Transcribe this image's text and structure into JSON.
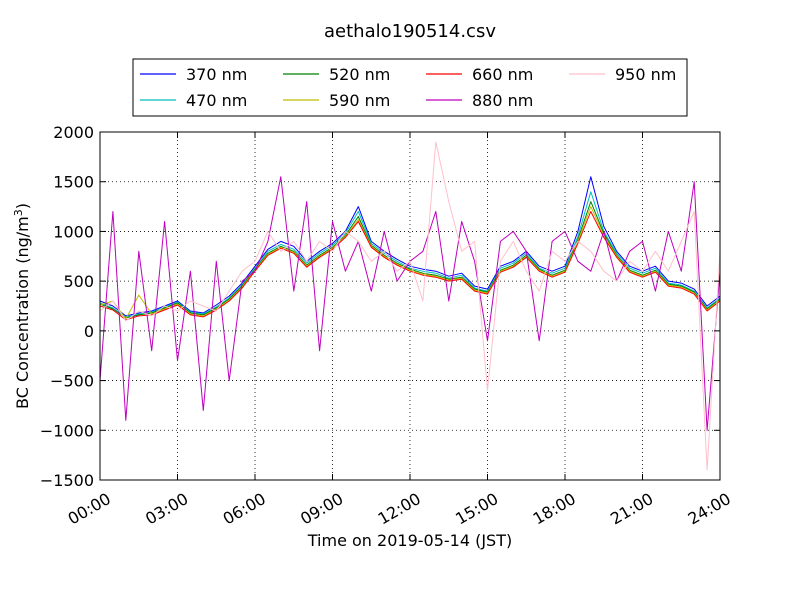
{
  "chart_data": {
    "type": "line",
    "title": "aethalo190514.csv",
    "xlabel": "Time on 2019-05-14 (JST)",
    "ylabel": "BC Concentration (ng/m³)",
    "ylabel_parts": {
      "base": "BC Concentration (ng/m",
      "sup": "3",
      "tail": ")"
    },
    "xlim": [
      0,
      24
    ],
    "ylim": [
      -1500,
      2000
    ],
    "x_unit": "hours",
    "x_ticks": [
      0,
      3,
      6,
      9,
      12,
      15,
      18,
      21,
      24
    ],
    "x_tick_labels": [
      "00:00",
      "03:00",
      "06:00",
      "09:00",
      "12:00",
      "15:00",
      "18:00",
      "21:00",
      "24:00"
    ],
    "y_ticks": [
      -1500,
      -1000,
      -500,
      0,
      500,
      1000,
      1500,
      2000
    ],
    "y_tick_labels": [
      "−1500",
      "−1000",
      "−500",
      "0",
      "500",
      "1000",
      "1500",
      "2000"
    ],
    "grid": "dotted",
    "legend_position": "top-center",
    "x": [
      0,
      0.5,
      1,
      1.5,
      2,
      2.5,
      3,
      3.5,
      4,
      4.5,
      5,
      5.5,
      6,
      6.5,
      7,
      7.5,
      8,
      8.5,
      9,
      9.5,
      10,
      10.5,
      11,
      11.5,
      12,
      12.5,
      13,
      13.5,
      14,
      14.5,
      15,
      15.5,
      16,
      16.5,
      17,
      17.5,
      18,
      18.5,
      19,
      19.5,
      20,
      20.5,
      21,
      21.5,
      22,
      22.5,
      23,
      23.5,
      24
    ],
    "series": [
      {
        "name": "370 nm",
        "color": "#0000ff",
        "values": [
          300,
          250,
          150,
          180,
          200,
          250,
          300,
          200,
          180,
          260,
          350,
          480,
          650,
          820,
          900,
          850,
          700,
          800,
          880,
          1000,
          1250,
          900,
          800,
          720,
          650,
          620,
          600,
          550,
          580,
          450,
          420,
          650,
          700,
          800,
          650,
          600,
          650,
          1000,
          1550,
          1050,
          800,
          650,
          600,
          650,
          500,
          480,
          420,
          250,
          350
        ]
      },
      {
        "name": "470 nm",
        "color": "#00bfbf",
        "values": [
          280,
          230,
          140,
          170,
          190,
          240,
          290,
          190,
          170,
          240,
          330,
          460,
          630,
          800,
          870,
          820,
          680,
          780,
          860,
          980,
          1200,
          880,
          780,
          700,
          630,
          600,
          580,
          530,
          560,
          430,
          400,
          630,
          680,
          780,
          630,
          580,
          630,
          950,
          1400,
          1000,
          780,
          630,
          580,
          630,
          480,
          460,
          400,
          230,
          330
        ]
      },
      {
        "name": "520 nm",
        "color": "#008000",
        "values": [
          270,
          220,
          130,
          160,
          180,
          230,
          280,
          180,
          160,
          230,
          320,
          450,
          620,
          780,
          850,
          800,
          660,
          760,
          840,
          960,
          1150,
          860,
          760,
          680,
          620,
          580,
          560,
          520,
          540,
          420,
          390,
          610,
          660,
          760,
          620,
          560,
          610,
          920,
          1300,
          980,
          760,
          610,
          560,
          610,
          470,
          450,
          390,
          220,
          320
        ]
      },
      {
        "name": "590 nm",
        "color": "#bfbf00",
        "values": [
          260,
          300,
          120,
          360,
          170,
          220,
          270,
          170,
          150,
          220,
          310,
          440,
          610,
          770,
          840,
          790,
          650,
          750,
          830,
          950,
          1120,
          850,
          750,
          670,
          610,
          570,
          550,
          510,
          530,
          410,
          380,
          600,
          650,
          750,
          610,
          550,
          600,
          900,
          1250,
          960,
          750,
          600,
          550,
          600,
          460,
          440,
          380,
          210,
          310
        ]
      },
      {
        "name": "660 nm",
        "color": "#ff0000",
        "values": [
          250,
          210,
          110,
          150,
          160,
          210,
          260,
          160,
          140,
          210,
          300,
          430,
          600,
          760,
          830,
          780,
          640,
          740,
          820,
          940,
          1100,
          840,
          740,
          660,
          600,
          560,
          540,
          500,
          520,
          400,
          370,
          590,
          640,
          740,
          600,
          540,
          590,
          880,
          1200,
          940,
          740,
          590,
          540,
          590,
          450,
          430,
          370,
          200,
          300
        ]
      },
      {
        "name": "880 nm",
        "color": "#bf00bf",
        "values": [
          -500,
          1200,
          -900,
          800,
          -200,
          1100,
          -300,
          600,
          -800,
          700,
          -500,
          500,
          600,
          900,
          1550,
          400,
          1300,
          -200,
          1100,
          600,
          900,
          400,
          1000,
          500,
          700,
          800,
          1200,
          300,
          1100,
          700,
          -100,
          900,
          1000,
          800,
          -100,
          900,
          1000,
          700,
          600,
          1000,
          500,
          800,
          900,
          400,
          1000,
          600,
          1500,
          -1000,
          600
        ]
      },
      {
        "name": "950 nm",
        "color": "#ffc0cb",
        "values": [
          200,
          300,
          100,
          200,
          150,
          250,
          200,
          300,
          250,
          200,
          400,
          600,
          700,
          1000,
          800,
          900,
          700,
          900,
          800,
          1000,
          900,
          700,
          800,
          600,
          700,
          300,
          1900,
          1300,
          800,
          900,
          -600,
          700,
          900,
          600,
          400,
          800,
          700,
          900,
          800,
          600,
          500,
          700,
          600,
          800,
          600,
          900,
          1200,
          -1400,
          800
        ]
      }
    ]
  }
}
